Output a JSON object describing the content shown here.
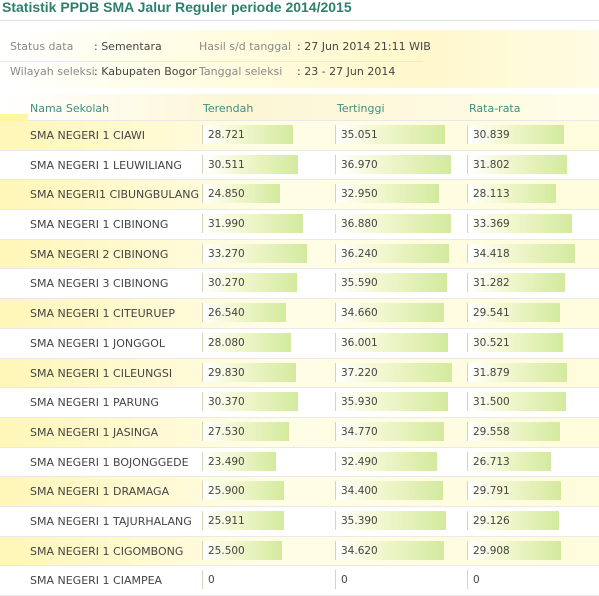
{
  "title": "Statistik PPDB SMA Jalur Reguler periode 2014/2015",
  "info": {
    "status_label": "Status data",
    "status_value": ": Sementara",
    "hasil_label": "Hasil s/d tanggal",
    "hasil_value": ": 27 Jun 2014 21:11 WIB",
    "wilayah_label": "Wilayah seleksi",
    "wilayah_value": ": Kabupaten Bogor",
    "tanggal_label": "Tanggal seleksi",
    "tanggal_value": ": 23 - 27 Jun 2014"
  },
  "table": {
    "headers": [
      "Nama Sekolah",
      "Terendah",
      "Tertinggi",
      "Rata-rata"
    ],
    "bar_max": 37.22,
    "rows": [
      {
        "school": "SMA NEGERI 1 CIAWI",
        "low": "28.721",
        "high": "35.051",
        "avg": "30.839"
      },
      {
        "school": "SMA NEGERI 1 LEUWILIANG",
        "low": "30.511",
        "high": "36.970",
        "avg": "31.802"
      },
      {
        "school": "SMA NEGERI1 CIBUNGBULANG",
        "low": "24.850",
        "high": "32.950",
        "avg": "28.113"
      },
      {
        "school": "SMA NEGERI 1 CIBINONG",
        "low": "31.990",
        "high": "36.880",
        "avg": "33.369"
      },
      {
        "school": "SMA NEGERI 2 CIBINONG",
        "low": "33.270",
        "high": "36.240",
        "avg": "34.418"
      },
      {
        "school": "SMA NEGERI 3 CIBINONG",
        "low": "30.270",
        "high": "35.590",
        "avg": "31.282"
      },
      {
        "school": "SMA NEGERI 1 CITEURUEP",
        "low": "26.540",
        "high": "34.660",
        "avg": "29.541"
      },
      {
        "school": "SMA NEGERI 1 JONGGOL",
        "low": "28.080",
        "high": "36.001",
        "avg": "30.521"
      },
      {
        "school": "SMA NEGERI 1 CILEUNGSI",
        "low": "29.830",
        "high": "37.220",
        "avg": "31.879"
      },
      {
        "school": "SMA NEGERI 1 PARUNG",
        "low": "30.370",
        "high": "35.930",
        "avg": "31.500"
      },
      {
        "school": "SMA NEGERI 1 JASINGA",
        "low": "27.530",
        "high": "34.770",
        "avg": "29.558"
      },
      {
        "school": "SMA NEGERI 1 BOJONGGEDE",
        "low": "23.490",
        "high": "32.490",
        "avg": "26.713"
      },
      {
        "school": "SMA NEGERI 1 DRAMAGA",
        "low": "25.900",
        "high": "34.400",
        "avg": "29.791"
      },
      {
        "school": "SMA NEGERI 1 TAJURHALANG",
        "low": "25.911",
        "high": "35.390",
        "avg": "29.126"
      },
      {
        "school": "SMA NEGERI 1 CIGOMBONG",
        "low": "25.500",
        "high": "34.620",
        "avg": "29.908"
      },
      {
        "school": "SMA NEGERI 1 CIAMPEA",
        "low": "0",
        "high": "0",
        "avg": "0"
      }
    ]
  }
}
